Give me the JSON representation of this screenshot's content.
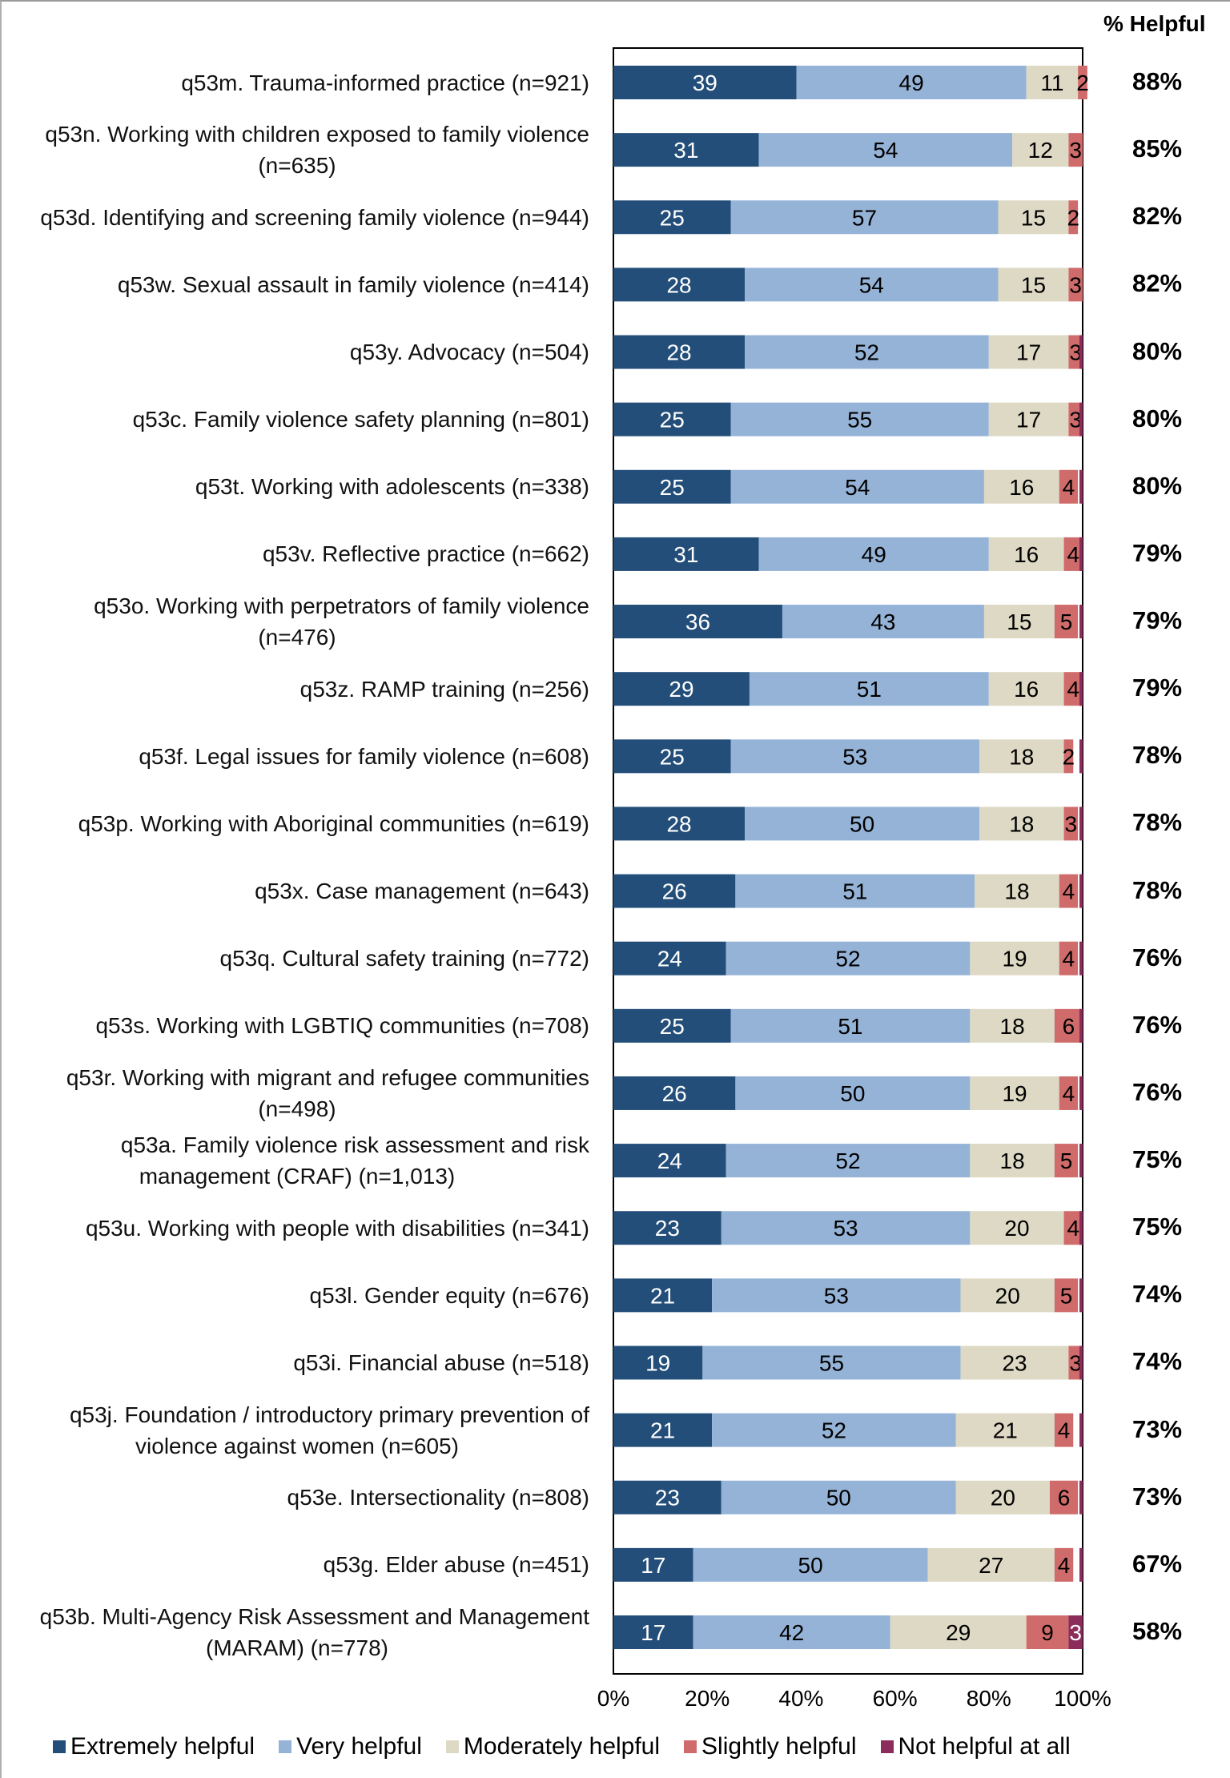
{
  "chart_data": {
    "type": "bar",
    "orientation": "horizontal",
    "stacked": true,
    "title": "",
    "xlabel": "",
    "ylabel": "",
    "xlim": [
      0,
      100
    ],
    "x_ticks": [
      "0%",
      "20%",
      "40%",
      "60%",
      "80%",
      "100%"
    ],
    "grid": false,
    "legend_position": "bottom",
    "right_column_header": "% Helpful",
    "categories": [
      "q53m. Trauma-informed practice (n=921)",
      "q53n. Working with children exposed to family violence (n=635)",
      "q53d. Identifying and screening family violence (n=944)",
      "q53w. Sexual assault in family violence (n=414)",
      "q53y. Advocacy (n=504)",
      "q53c. Family violence safety planning (n=801)",
      "q53t. Working with adolescents (n=338)",
      "q53v. Reflective practice (n=662)",
      "q53o. Working with perpetrators of family violence (n=476)",
      "q53z. RAMP training (n=256)",
      "q53f. Legal issues for family violence (n=608)",
      "q53p. Working with Aboriginal communities (n=619)",
      "q53x. Case management (n=643)",
      "q53q. Cultural safety training (n=772)",
      "q53s. Working with LGBTIQ communities (n=708)",
      "q53r. Working with migrant and refugee communities (n=498)",
      "q53a. Family violence risk assessment and risk management (CRAF) (n=1,013)",
      "q53u. Working with people with disabilities (n=341)",
      "q53l. Gender equity (n=676)",
      "q53i. Financial abuse (n=518)",
      "q53j. Foundation / introductory primary prevention of violence against women (n=605)",
      "q53e. Intersectionality (n=808)",
      "q53g. Elder abuse (n=451)",
      "q53b. Multi-Agency Risk Assessment and Management (MARAM) (n=778)"
    ],
    "category_lines": [
      [
        "q53m. Trauma-informed practice (n=921)"
      ],
      [
        "q53n. Working with children exposed to family violence",
        "(n=635)"
      ],
      [
        "q53d. Identifying and screening family violence (n=944)"
      ],
      [
        "q53w. Sexual assault in family violence (n=414)"
      ],
      [
        "q53y. Advocacy (n=504)"
      ],
      [
        "q53c. Family violence safety planning (n=801)"
      ],
      [
        "q53t. Working with adolescents (n=338)"
      ],
      [
        "q53v. Reflective practice (n=662)"
      ],
      [
        "q53o. Working with perpetrators of family violence",
        "(n=476)"
      ],
      [
        "q53z. RAMP training (n=256)"
      ],
      [
        "q53f. Legal issues for family violence (n=608)"
      ],
      [
        "q53p. Working with Aboriginal communities (n=619)"
      ],
      [
        "q53x. Case management (n=643)"
      ],
      [
        "q53q. Cultural safety training (n=772)"
      ],
      [
        "q53s. Working with LGBTIQ communities (n=708)"
      ],
      [
        "q53r. Working with migrant and refugee communities",
        "(n=498)"
      ],
      [
        "q53a. Family violence risk assessment and risk",
        "management (CRAF) (n=1,013)"
      ],
      [
        "q53u. Working with people with disabilities (n=341)"
      ],
      [
        "q53l. Gender equity (n=676)"
      ],
      [
        "q53i. Financial abuse (n=518)"
      ],
      [
        "q53j. Foundation / introductory primary prevention of",
        "violence against women (n=605)"
      ],
      [
        "q53e. Intersectionality (n=808)"
      ],
      [
        "q53g. Elder abuse (n=451)"
      ],
      [
        "q53b. Multi-Agency Risk Assessment and Management",
        "(MARAM) (n=778)"
      ]
    ],
    "series": [
      {
        "name": "Extremely helpful",
        "color": "#234e79",
        "label_color": "#ffffff",
        "values": [
          39,
          31,
          25,
          28,
          28,
          25,
          25,
          31,
          36,
          29,
          25,
          28,
          26,
          24,
          25,
          26,
          24,
          23,
          21,
          19,
          21,
          23,
          17,
          17
        ]
      },
      {
        "name": "Very helpful",
        "color": "#95b3d7",
        "label_color": "#000000",
        "values": [
          49,
          54,
          57,
          54,
          52,
          55,
          54,
          49,
          43,
          51,
          53,
          50,
          51,
          52,
          51,
          50,
          52,
          53,
          53,
          55,
          52,
          50,
          50,
          42
        ]
      },
      {
        "name": "Moderately helpful",
        "color": "#ddd9c4",
        "label_color": "#000000",
        "values": [
          11,
          12,
          15,
          15,
          17,
          17,
          16,
          16,
          15,
          16,
          18,
          18,
          18,
          19,
          18,
          19,
          18,
          20,
          20,
          23,
          21,
          20,
          27,
          29
        ]
      },
      {
        "name": "Slightly helpful",
        "color": "#d06b6b",
        "label_color": "#000000",
        "values": [
          2,
          3,
          2,
          3,
          3,
          3,
          4,
          4,
          5,
          4,
          2,
          3,
          4,
          4,
          6,
          4,
          5,
          4,
          5,
          3,
          4,
          6,
          4,
          9
        ]
      },
      {
        "name": "Not helpful at all",
        "color": "#8b2c5b",
        "label_color": "#ffffff",
        "values": [
          0,
          0,
          0,
          0,
          1,
          1,
          1,
          1,
          1,
          1,
          1,
          1,
          1,
          1,
          1,
          1,
          1,
          1,
          1,
          1,
          1,
          1,
          1,
          3
        ],
        "labels_shown": [
          false,
          false,
          false,
          false,
          false,
          false,
          false,
          false,
          false,
          false,
          false,
          false,
          false,
          false,
          false,
          false,
          false,
          false,
          false,
          false,
          false,
          false,
          false,
          true
        ]
      }
    ],
    "percent_helpful": [
      "88%",
      "85%",
      "82%",
      "82%",
      "80%",
      "80%",
      "80%",
      "79%",
      "79%",
      "79%",
      "78%",
      "78%",
      "78%",
      "76%",
      "76%",
      "76%",
      "75%",
      "75%",
      "74%",
      "74%",
      "73%",
      "73%",
      "67%",
      "58%"
    ]
  }
}
